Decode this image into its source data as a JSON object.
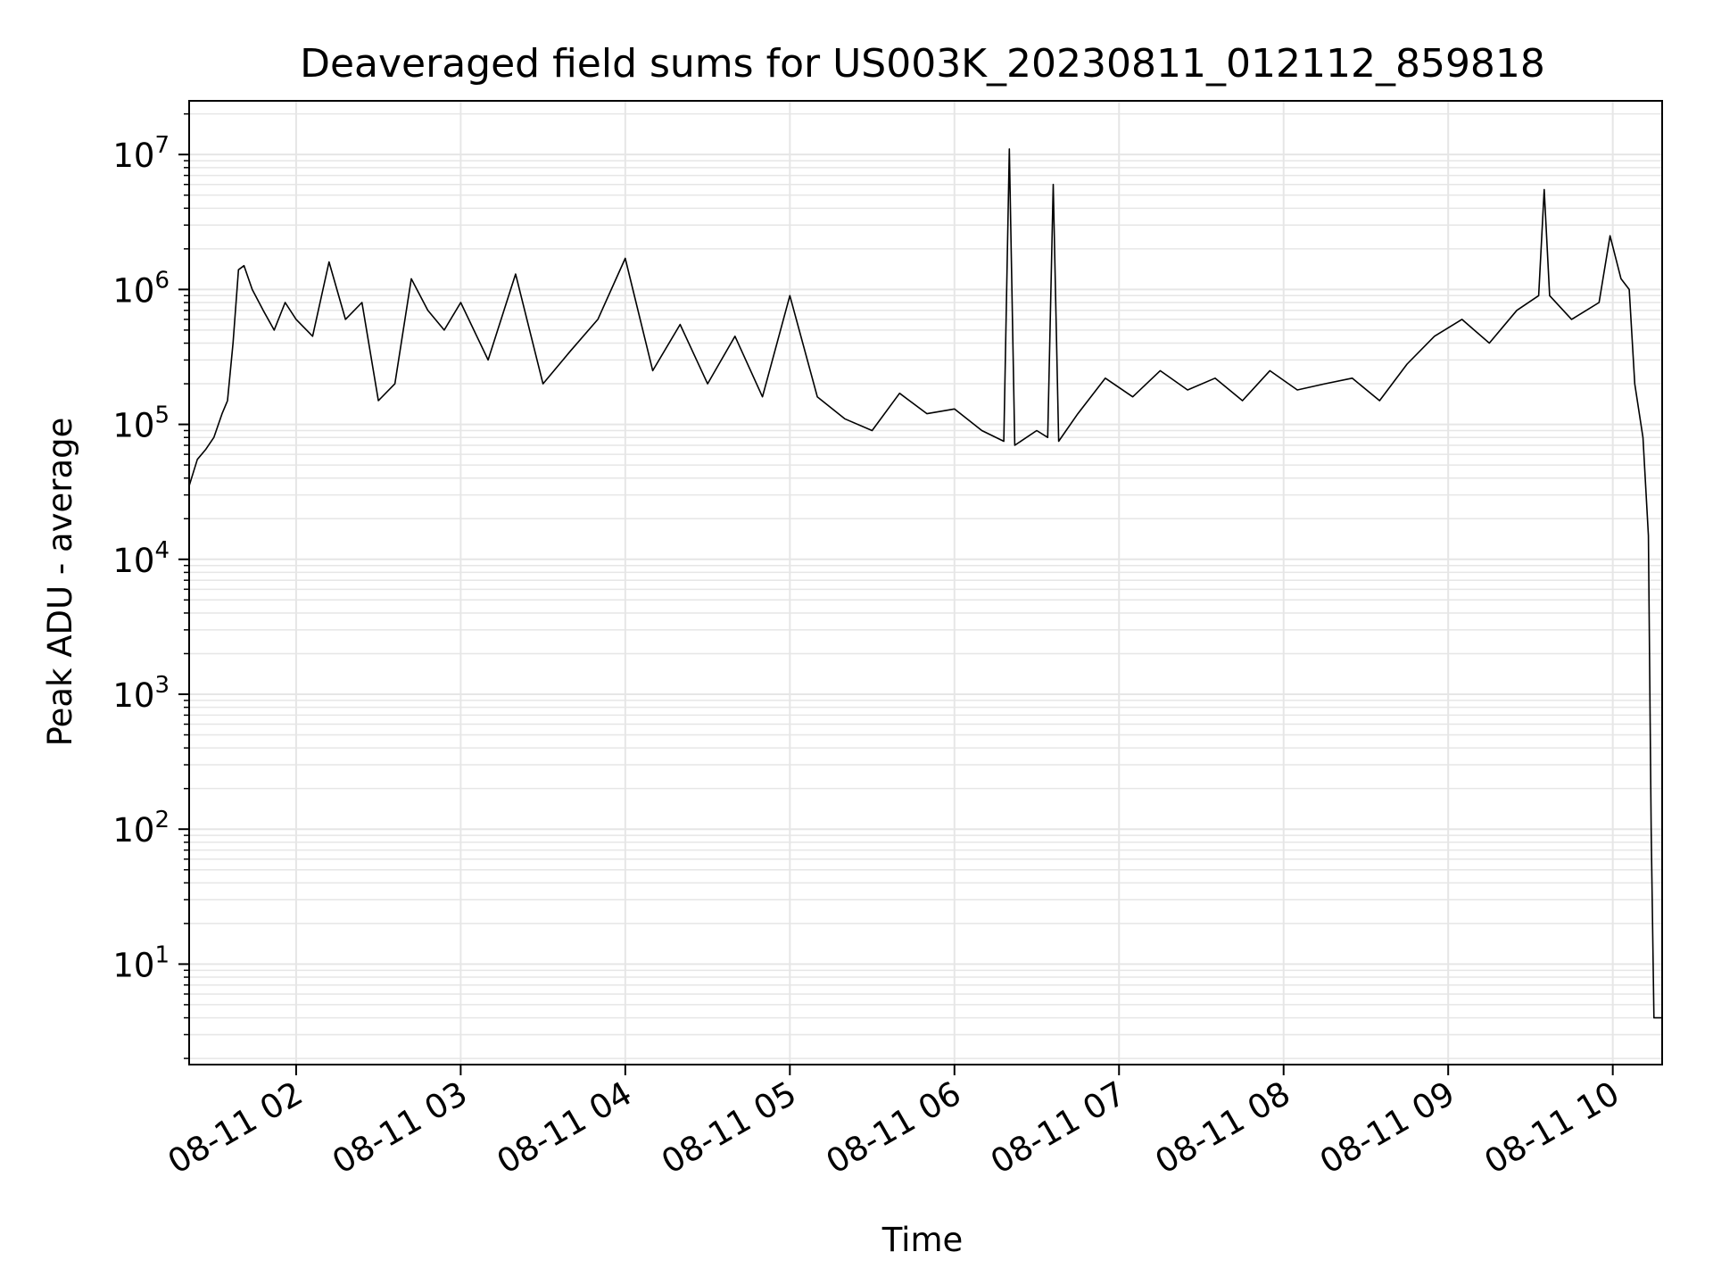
{
  "chart_data": {
    "type": "line",
    "title": "Deaveraged field sums for US003K_20230811_012112_859818",
    "xlabel": "Time",
    "ylabel": "Peak ADU - average",
    "yscale": "log",
    "ylim": [
      1.8,
      25000000
    ],
    "xlim": [
      "2023-08-11 01:21",
      "2023-08-11 10:18"
    ],
    "grid": true,
    "line_color": "#000000",
    "grid_color": "#e6e6e6",
    "x_ticks": [
      {
        "t": "2023-08-11 02:00",
        "label": "08-11 02"
      },
      {
        "t": "2023-08-11 03:00",
        "label": "08-11 03"
      },
      {
        "t": "2023-08-11 04:00",
        "label": "08-11 04"
      },
      {
        "t": "2023-08-11 05:00",
        "label": "08-11 05"
      },
      {
        "t": "2023-08-11 06:00",
        "label": "08-11 06"
      },
      {
        "t": "2023-08-11 07:00",
        "label": "08-11 07"
      },
      {
        "t": "2023-08-11 08:00",
        "label": "08-11 08"
      },
      {
        "t": "2023-08-11 09:00",
        "label": "08-11 09"
      },
      {
        "t": "2023-08-11 10:00",
        "label": "08-11 10"
      }
    ],
    "y_ticks": [
      {
        "value": 10,
        "base": "10",
        "exp": "1"
      },
      {
        "value": 100,
        "base": "10",
        "exp": "2"
      },
      {
        "value": 1000,
        "base": "10",
        "exp": "3"
      },
      {
        "value": 10000,
        "base": "10",
        "exp": "4"
      },
      {
        "value": 100000,
        "base": "10",
        "exp": "5"
      },
      {
        "value": 1000000,
        "base": "10",
        "exp": "6"
      },
      {
        "value": 10000000,
        "base": "10",
        "exp": "7"
      }
    ],
    "series": [
      {
        "x": [
          "2023-08-11 01:21",
          "2023-08-11 01:24",
          "2023-08-11 01:27",
          "2023-08-11 01:30",
          "2023-08-11 01:33",
          "2023-08-11 01:35",
          "2023-08-11 01:37",
          "2023-08-11 01:39",
          "2023-08-11 01:41",
          "2023-08-11 01:44",
          "2023-08-11 01:48",
          "2023-08-11 01:52",
          "2023-08-11 01:56",
          "2023-08-11 02:00",
          "2023-08-11 02:06",
          "2023-08-11 02:12",
          "2023-08-11 02:18",
          "2023-08-11 02:24",
          "2023-08-11 02:30",
          "2023-08-11 02:36",
          "2023-08-11 02:42",
          "2023-08-11 02:48",
          "2023-08-11 02:54",
          "2023-08-11 03:00",
          "2023-08-11 03:10",
          "2023-08-11 03:20",
          "2023-08-11 03:30",
          "2023-08-11 03:40",
          "2023-08-11 03:50",
          "2023-08-11 04:00",
          "2023-08-11 04:10",
          "2023-08-11 04:20",
          "2023-08-11 04:30",
          "2023-08-11 04:40",
          "2023-08-11 04:50",
          "2023-08-11 05:00",
          "2023-08-11 05:10",
          "2023-08-11 05:20",
          "2023-08-11 05:30",
          "2023-08-11 05:40",
          "2023-08-11 05:50",
          "2023-08-11 06:00",
          "2023-08-11 06:10",
          "2023-08-11 06:18",
          "2023-08-11 06:20",
          "2023-08-11 06:22",
          "2023-08-11 06:30",
          "2023-08-11 06:34",
          "2023-08-11 06:36",
          "2023-08-11 06:38",
          "2023-08-11 06:45",
          "2023-08-11 06:55",
          "2023-08-11 07:05",
          "2023-08-11 07:15",
          "2023-08-11 07:25",
          "2023-08-11 07:35",
          "2023-08-11 07:45",
          "2023-08-11 07:55",
          "2023-08-11 08:05",
          "2023-08-11 08:15",
          "2023-08-11 08:25",
          "2023-08-11 08:35",
          "2023-08-11 08:45",
          "2023-08-11 08:55",
          "2023-08-11 09:05",
          "2023-08-11 09:15",
          "2023-08-11 09:25",
          "2023-08-11 09:33",
          "2023-08-11 09:35",
          "2023-08-11 09:37",
          "2023-08-11 09:45",
          "2023-08-11 09:55",
          "2023-08-11 09:59",
          "2023-08-11 10:03",
          "2023-08-11 10:06",
          "2023-08-11 10:08",
          "2023-08-11 10:11",
          "2023-08-11 10:13",
          "2023-08-11 10:14",
          "2023-08-11 10:15",
          "2023-08-11 10:16",
          "2023-08-11 10:18"
        ],
        "y": [
          35000,
          55000,
          65000,
          80000,
          120000,
          150000,
          400000,
          1400000,
          1500000,
          1000000,
          700000,
          500000,
          800000,
          600000,
          450000,
          1600000,
          600000,
          800000,
          150000,
          200000,
          1200000,
          700000,
          500000,
          800000,
          300000,
          1300000,
          200000,
          350000,
          600000,
          1700000,
          250000,
          550000,
          200000,
          450000,
          160000,
          900000,
          160000,
          110000,
          90000,
          170000,
          120000,
          130000,
          90000,
          75000,
          11000000,
          70000,
          90000,
          80000,
          6000000,
          75000,
          120000,
          220000,
          160000,
          250000,
          180000,
          220000,
          150000,
          250000,
          180000,
          200000,
          220000,
          150000,
          280000,
          450000,
          600000,
          400000,
          700000,
          900000,
          5500000,
          900000,
          600000,
          800000,
          2500000,
          1200000,
          1000000,
          200000,
          80000,
          15000,
          100,
          4,
          4,
          4
        ]
      }
    ]
  }
}
